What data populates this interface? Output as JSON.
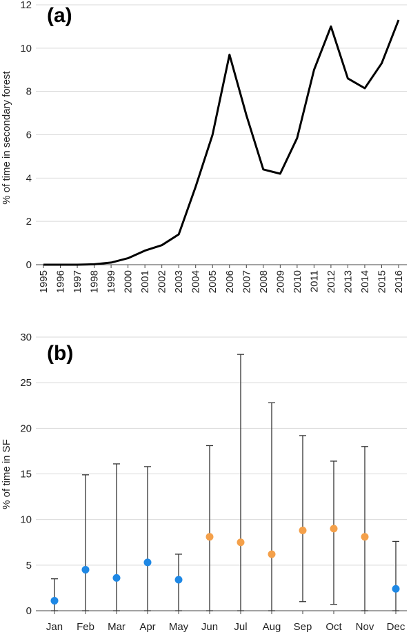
{
  "chart_data": [
    {
      "type": "line",
      "panel_label": "(a)",
      "ylabel": "% of time in secondary forest",
      "ylim": [
        0,
        12
      ],
      "yticks": [
        "0",
        "2",
        "4",
        "6",
        "8",
        "10",
        "12"
      ],
      "grid": true,
      "x": [
        "1995",
        "1996",
        "1997",
        "1998",
        "1999",
        "2000",
        "2001",
        "2002",
        "2003",
        "2004",
        "2005",
        "2006",
        "2007",
        "2008",
        "2009",
        "2010",
        "2011",
        "2012",
        "2013",
        "2014",
        "2015",
        "2016"
      ],
      "series": [
        {
          "values": [
            0,
            0,
            0,
            0.02,
            0.1,
            0.3,
            0.65,
            0.9,
            1.4,
            3.6,
            6.0,
            9.7,
            6.9,
            4.4,
            4.2,
            5.85,
            9.0,
            11.0,
            8.6,
            8.15,
            9.3,
            11.3
          ],
          "color": "#000000"
        }
      ]
    },
    {
      "type": "scatter",
      "panel_label": "(b)",
      "ylabel": "% of time in SF",
      "ylim": [
        0,
        30
      ],
      "yticks": [
        "0",
        "5",
        "10",
        "15",
        "20",
        "25",
        "30"
      ],
      "grid": true,
      "categories": [
        "Jan",
        "Feb",
        "Mar",
        "Apr",
        "May",
        "Jun",
        "Jul",
        "Aug",
        "Sep",
        "Oct",
        "Nov",
        "Dec"
      ],
      "values": [
        1.1,
        4.5,
        3.6,
        5.3,
        3.4,
        8.1,
        7.5,
        6.2,
        8.8,
        9.0,
        8.1,
        2.4
      ],
      "error_low": [
        0,
        0,
        0,
        0,
        0,
        0,
        0,
        0,
        1.0,
        0.7,
        0,
        0
      ],
      "error_high": [
        3.5,
        14.9,
        16.1,
        15.8,
        6.2,
        18.1,
        28.1,
        22.8,
        19.2,
        16.4,
        18.0,
        7.6
      ],
      "point_colors": [
        "#1e88e5",
        "#1e88e5",
        "#1e88e5",
        "#1e88e5",
        "#1e88e5",
        "#f4a04a",
        "#f4a04a",
        "#f4a04a",
        "#f4a04a",
        "#f4a04a",
        "#f4a04a",
        "#1e88e5"
      ]
    }
  ]
}
